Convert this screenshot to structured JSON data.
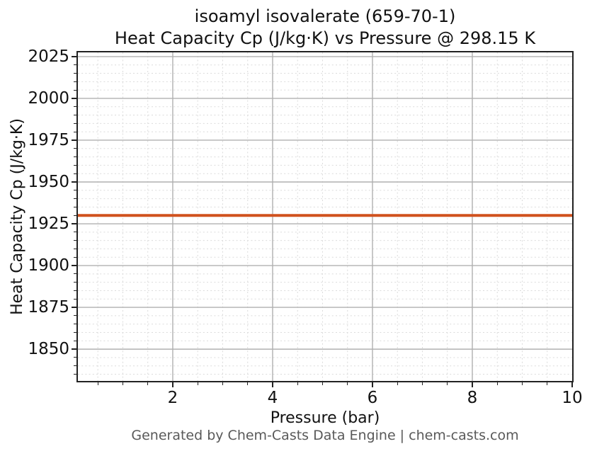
{
  "title": {
    "line1": "isoamyl isovalerate (659-70-1)",
    "line2": "Heat Capacity Cp (J/kg·K) vs Pressure @ 298.15 K"
  },
  "axes": {
    "xlabel": "Pressure (bar)",
    "ylabel": "Heat Capacity Cp (J/kg·K)"
  },
  "footer": {
    "credit": "Generated by Chem-Casts Data Engine | chem-casts.com"
  },
  "chart_data": {
    "type": "line",
    "title": "isoamyl isovalerate (659-70-1) — Heat Capacity Cp (J/kg·K) vs Pressure @ 298.15 K",
    "xlabel": "Pressure (bar)",
    "ylabel": "Heat Capacity Cp (J/kg·K)",
    "x": [
      0.1,
      1,
      2,
      3,
      4,
      5,
      6,
      7,
      8,
      9,
      10
    ],
    "series": [
      {
        "name": "Heat Capacity Cp @ 298.15 K",
        "color": "#d0521e",
        "values": [
          1930,
          1930,
          1930,
          1930,
          1930,
          1930,
          1930,
          1930,
          1930,
          1930,
          1930
        ]
      }
    ],
    "constant_value": 1930,
    "xlim": [
      0.1,
      10
    ],
    "ylim": [
      1831,
      2027.5
    ],
    "x_major_ticks": [
      2,
      4,
      6,
      8,
      10
    ],
    "x_minor_step": 0.5,
    "y_major_ticks": [
      1850,
      1875,
      1900,
      1925,
      1950,
      1975,
      2000,
      2025
    ],
    "y_minor_step": 5,
    "grid": {
      "major": true,
      "minor": true,
      "major_color": "#b0b0b0",
      "minor_color": "#dbdbdb",
      "minor_style": "dashed"
    },
    "legend": "none",
    "frame_color": "#222222",
    "footer_color": "#595959"
  }
}
